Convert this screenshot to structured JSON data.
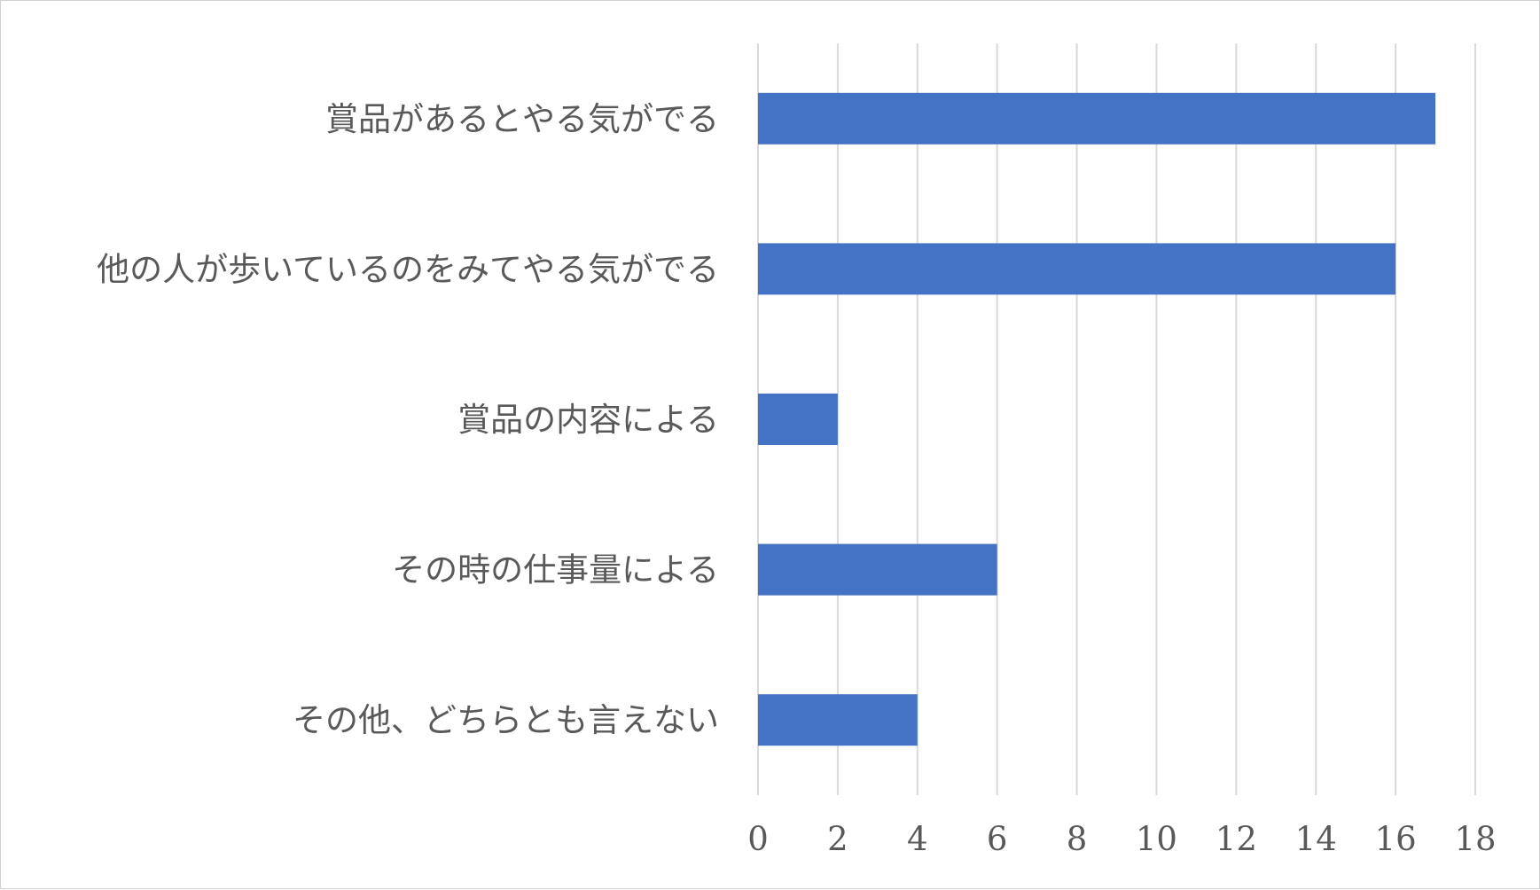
{
  "chart_data": {
    "type": "bar",
    "orientation": "horizontal",
    "categories": [
      "賞品があるとやる気がでる",
      "他の人が歩いているのをみてやる気がでる",
      "賞品の内容による",
      "その時の仕事量による",
      "その他、どちらとも言えない"
    ],
    "values": [
      17,
      16,
      2,
      6,
      4
    ],
    "xlim": [
      0,
      18
    ],
    "xticks": [
      "0",
      "2",
      "4",
      "6",
      "8",
      "10",
      "12",
      "14",
      "16",
      "18"
    ],
    "grid": true,
    "legend": "none",
    "colors": {
      "bar": "#4472c4",
      "grid": "#d9d9d9",
      "text": "#595959"
    }
  }
}
